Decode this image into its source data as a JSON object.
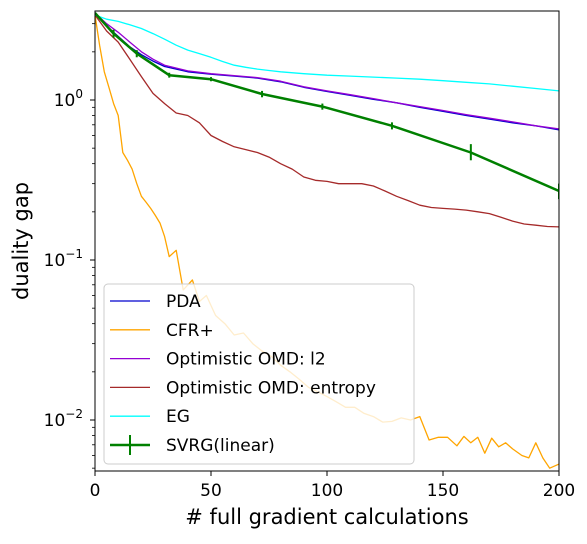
{
  "chart_data": {
    "type": "line",
    "title": "",
    "xlabel": "# full gradient calculations",
    "ylabel": "duality gap",
    "xlim": [
      0,
      200
    ],
    "ylim": [
      0.0048,
      3.6
    ],
    "yscale": "log",
    "grid": false,
    "legend_position": "bottom-left",
    "x_ticks": [
      {
        "value": 0,
        "label": "0"
      },
      {
        "value": 50,
        "label": "50"
      },
      {
        "value": 100,
        "label": "100"
      },
      {
        "value": 150,
        "label": "150"
      },
      {
        "value": 200,
        "label": "200"
      }
    ],
    "y_ticks": [
      {
        "value": 1,
        "base": "10",
        "exp": "0"
      },
      {
        "value": 0.1,
        "base": "10",
        "exp": "−1"
      },
      {
        "value": 0.01,
        "base": "10",
        "exp": "−2"
      }
    ],
    "series": [
      {
        "name": "PDA",
        "color": "#0000cd",
        "points": [
          [
            0,
            3.5
          ],
          [
            5,
            2.9
          ],
          [
            10,
            2.5
          ],
          [
            15,
            2.15
          ],
          [
            20,
            1.92
          ],
          [
            25,
            1.75
          ],
          [
            30,
            1.62
          ],
          [
            40,
            1.5
          ],
          [
            50,
            1.45
          ],
          [
            60,
            1.41
          ],
          [
            70,
            1.37
          ],
          [
            80,
            1.3
          ],
          [
            90,
            1.2
          ],
          [
            100,
            1.13
          ],
          [
            110,
            1.07
          ],
          [
            120,
            1.01
          ],
          [
            130,
            0.96
          ],
          [
            140,
            0.9
          ],
          [
            150,
            0.85
          ],
          [
            160,
            0.8
          ],
          [
            170,
            0.76
          ],
          [
            180,
            0.72
          ],
          [
            190,
            0.69
          ],
          [
            200,
            0.65
          ]
        ]
      },
      {
        "name": "CFR+",
        "color": "#ffa500",
        "points": [
          [
            0,
            3.4
          ],
          [
            2,
            2.2
          ],
          [
            4,
            1.5
          ],
          [
            6,
            1.2
          ],
          [
            8,
            0.95
          ],
          [
            10,
            0.8
          ],
          [
            12,
            0.47
          ],
          [
            14,
            0.42
          ],
          [
            16,
            0.37
          ],
          [
            18,
            0.3
          ],
          [
            20,
            0.25
          ],
          [
            22,
            0.23
          ],
          [
            24,
            0.21
          ],
          [
            26,
            0.19
          ],
          [
            28,
            0.17
          ],
          [
            30,
            0.14
          ],
          [
            32,
            0.105
          ],
          [
            35,
            0.115
          ],
          [
            38,
            0.065
          ],
          [
            42,
            0.075
          ],
          [
            45,
            0.055
          ],
          [
            48,
            0.06
          ],
          [
            52,
            0.045
          ],
          [
            56,
            0.04
          ],
          [
            60,
            0.034
          ],
          [
            64,
            0.035
          ],
          [
            68,
            0.03
          ],
          [
            72,
            0.027
          ],
          [
            76,
            0.025
          ],
          [
            80,
            0.022
          ],
          [
            84,
            0.02
          ],
          [
            88,
            0.018
          ],
          [
            92,
            0.016
          ],
          [
            96,
            0.015
          ],
          [
            100,
            0.014
          ],
          [
            104,
            0.013
          ],
          [
            108,
            0.012
          ],
          [
            112,
            0.012
          ],
          [
            116,
            0.011
          ],
          [
            120,
            0.0105
          ],
          [
            124,
            0.0097
          ],
          [
            128,
            0.0098
          ],
          [
            132,
            0.0103
          ],
          [
            136,
            0.01
          ],
          [
            140,
            0.0105
          ],
          [
            144,
            0.0075
          ],
          [
            148,
            0.0078
          ],
          [
            152,
            0.0078
          ],
          [
            156,
            0.0069
          ],
          [
            159,
            0.0079
          ],
          [
            162,
            0.0072
          ],
          [
            165,
            0.0078
          ],
          [
            168,
            0.0062
          ],
          [
            171,
            0.0077
          ],
          [
            174,
            0.0068
          ],
          [
            177,
            0.0072
          ],
          [
            180,
            0.0066
          ],
          [
            184,
            0.006
          ],
          [
            187,
            0.0058
          ],
          [
            190,
            0.0072
          ],
          [
            193,
            0.0058
          ],
          [
            196,
            0.005
          ],
          [
            200,
            0.0053
          ]
        ]
      },
      {
        "name": "Optimistic OMD: l2",
        "color": "#9400d3",
        "points": [
          [
            0,
            3.5
          ],
          [
            5,
            3.0
          ],
          [
            10,
            2.65
          ],
          [
            15,
            2.3
          ],
          [
            20,
            2.0
          ],
          [
            25,
            1.8
          ],
          [
            30,
            1.65
          ],
          [
            40,
            1.52
          ],
          [
            50,
            1.46
          ],
          [
            60,
            1.42
          ],
          [
            70,
            1.38
          ],
          [
            80,
            1.31
          ],
          [
            90,
            1.21
          ],
          [
            100,
            1.14
          ],
          [
            110,
            1.08
          ],
          [
            120,
            1.02
          ],
          [
            130,
            0.96
          ],
          [
            140,
            0.91
          ],
          [
            150,
            0.86
          ],
          [
            160,
            0.81
          ],
          [
            170,
            0.77
          ],
          [
            180,
            0.73
          ],
          [
            190,
            0.69
          ],
          [
            200,
            0.66
          ]
        ]
      },
      {
        "name": "Optimistic OMD: entropy",
        "color": "#a52a2a",
        "points": [
          [
            0,
            3.4
          ],
          [
            5,
            2.7
          ],
          [
            10,
            2.3
          ],
          [
            15,
            1.8
          ],
          [
            20,
            1.4
          ],
          [
            25,
            1.1
          ],
          [
            30,
            0.95
          ],
          [
            35,
            0.83
          ],
          [
            40,
            0.8
          ],
          [
            45,
            0.72
          ],
          [
            50,
            0.6
          ],
          [
            55,
            0.55
          ],
          [
            60,
            0.51
          ],
          [
            65,
            0.49
          ],
          [
            70,
            0.47
          ],
          [
            75,
            0.44
          ],
          [
            80,
            0.4
          ],
          [
            85,
            0.37
          ],
          [
            90,
            0.33
          ],
          [
            95,
            0.315
          ],
          [
            100,
            0.31
          ],
          [
            105,
            0.3
          ],
          [
            110,
            0.3
          ],
          [
            115,
            0.3
          ],
          [
            120,
            0.29
          ],
          [
            125,
            0.27
          ],
          [
            130,
            0.25
          ],
          [
            135,
            0.235
          ],
          [
            140,
            0.22
          ],
          [
            145,
            0.213
          ],
          [
            150,
            0.21
          ],
          [
            155,
            0.208
          ],
          [
            160,
            0.205
          ],
          [
            165,
            0.2
          ],
          [
            170,
            0.195
          ],
          [
            175,
            0.185
          ],
          [
            180,
            0.175
          ],
          [
            185,
            0.168
          ],
          [
            190,
            0.165
          ],
          [
            195,
            0.162
          ],
          [
            200,
            0.161
          ]
        ]
      },
      {
        "name": "EG",
        "color": "#00ffff",
        "points": [
          [
            0,
            3.4
          ],
          [
            5,
            3.2
          ],
          [
            10,
            3.1
          ],
          [
            15,
            2.95
          ],
          [
            20,
            2.8
          ],
          [
            25,
            2.6
          ],
          [
            30,
            2.4
          ],
          [
            35,
            2.2
          ],
          [
            40,
            2.05
          ],
          [
            45,
            1.95
          ],
          [
            50,
            1.85
          ],
          [
            55,
            1.74
          ],
          [
            60,
            1.65
          ],
          [
            65,
            1.6
          ],
          [
            70,
            1.56
          ],
          [
            75,
            1.53
          ],
          [
            80,
            1.5
          ],
          [
            90,
            1.46
          ],
          [
            100,
            1.43
          ],
          [
            110,
            1.41
          ],
          [
            120,
            1.39
          ],
          [
            130,
            1.37
          ],
          [
            140,
            1.35
          ],
          [
            150,
            1.32
          ],
          [
            160,
            1.29
          ],
          [
            170,
            1.26
          ],
          [
            180,
            1.22
          ],
          [
            190,
            1.18
          ],
          [
            200,
            1.14
          ]
        ]
      },
      {
        "name": "SVRG(linear)",
        "color": "#008000",
        "points": [
          [
            0,
            3.5
          ],
          [
            8,
            2.6
          ],
          [
            18,
            1.95
          ],
          [
            32,
            1.43
          ],
          [
            50,
            1.35
          ],
          [
            72,
            1.09
          ],
          [
            98,
            0.91
          ],
          [
            128,
            0.69
          ],
          [
            162,
            0.47
          ],
          [
            200,
            0.27
          ]
        ],
        "error_bars": [
          [
            8,
            2.45,
            2.75
          ],
          [
            18,
            1.85,
            2.05
          ],
          [
            32,
            1.38,
            1.48
          ],
          [
            50,
            1.31,
            1.39
          ],
          [
            72,
            1.04,
            1.14
          ],
          [
            98,
            0.87,
            0.95
          ],
          [
            128,
            0.655,
            0.725
          ],
          [
            162,
            0.42,
            0.53
          ],
          [
            200,
            0.24,
            0.3
          ]
        ]
      }
    ]
  }
}
